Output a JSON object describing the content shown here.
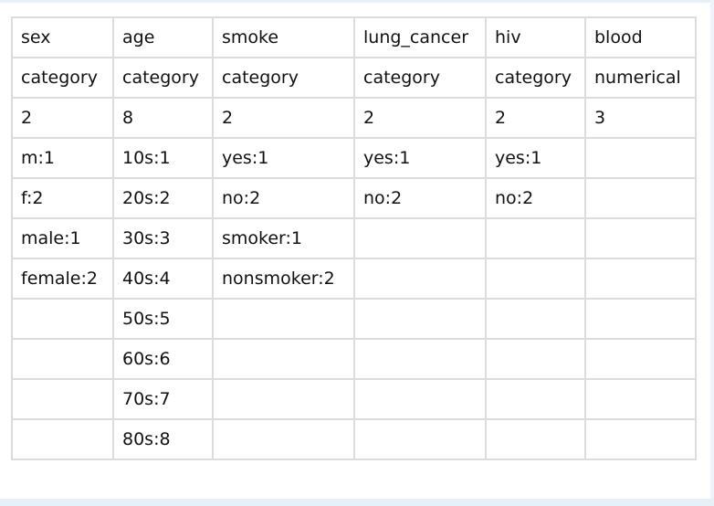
{
  "table": {
    "rows": [
      [
        "sex",
        "age",
        "smoke",
        "lung_cancer",
        "hiv",
        "blood"
      ],
      [
        "category",
        "category",
        "category",
        "category",
        "category",
        "numerical"
      ],
      [
        "2",
        "8",
        "2",
        "2",
        "2",
        "3"
      ],
      [
        "m:1",
        "10s:1",
        "yes:1",
        "yes:1",
        "yes:1",
        ""
      ],
      [
        "f:2",
        "20s:2",
        "no:2",
        "no:2",
        "no:2",
        ""
      ],
      [
        "male:1",
        "30s:3",
        "smoker:1",
        "",
        "",
        ""
      ],
      [
        "female:2",
        "40s:4",
        "nonsmoker:2",
        "",
        "",
        ""
      ],
      [
        "",
        "50s:5",
        "",
        "",
        "",
        ""
      ],
      [
        "",
        "60s:6",
        "",
        "",
        "",
        ""
      ],
      [
        "",
        "70s:7",
        "",
        "",
        "",
        ""
      ],
      [
        "",
        "80s:8",
        "",
        "",
        "",
        ""
      ]
    ]
  }
}
